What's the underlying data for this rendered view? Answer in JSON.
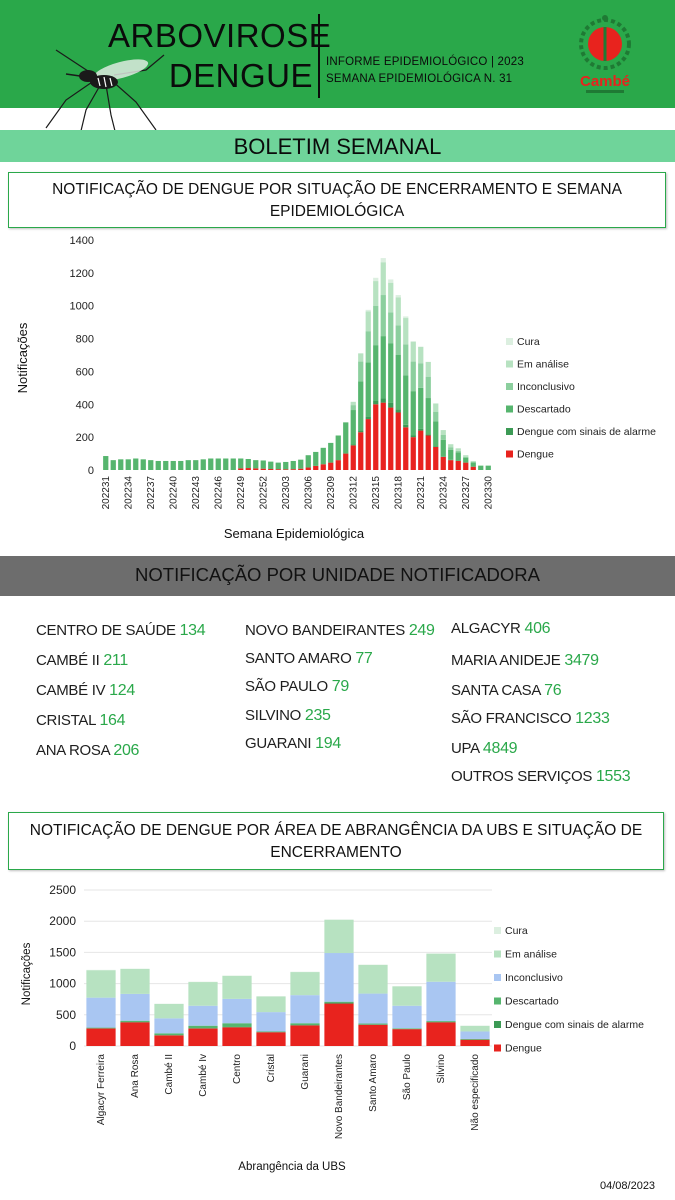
{
  "header": {
    "title_line1": "ARBOVIROSE",
    "title_line2": "DENGUE",
    "informe_line1": "INFORME EPIDEMIOLÓGICO | 2023",
    "informe_line2": "SEMANA EPIDEMIOLÓGICA   N. 31",
    "logo_text": "Cambé"
  },
  "banner": {
    "title": "BOLETIM SEMANAL"
  },
  "section1": {
    "title": "NOTIFICAÇÃO DE DENGUE POR SITUAÇÃO DE ENCERRAMENTO E SEMANA EPIDEMIOLÓGICA"
  },
  "section2": {
    "title": "NOTIFICAÇÃO POR UNIDADE NOTIFICADORA",
    "units": [
      {
        "name": "CENTRO  DE SAÚDE",
        "value": "134"
      },
      {
        "name": "CAMBÉ II",
        "value": "211"
      },
      {
        "name": "CAMBÉ IV",
        "value": "124"
      },
      {
        "name": "CRISTAL",
        "value": "164"
      },
      {
        "name": "ANA ROSA",
        "value": "206"
      },
      {
        "name": "NOVO BANDEIRANTES",
        "value": "249"
      },
      {
        "name": "SANTO AMARO",
        "value": "77"
      },
      {
        "name": "SÃO PAULO",
        "value": "79"
      },
      {
        "name": "SILVINO",
        "value": "235"
      },
      {
        "name": "GUARANI",
        "value": "194"
      },
      {
        "name": "ALGACYR",
        "value": "406"
      },
      {
        "name": "MARIA ANIDEJE",
        "value": "3479"
      },
      {
        "name": "SANTA CASA",
        "value": "76"
      },
      {
        "name": "SÃO FRANCISCO",
        "value": "1233"
      },
      {
        "name": "UPA",
        "value": "4849"
      },
      {
        "name": "OUTROS SERVIÇOS",
        "value": "1553"
      }
    ]
  },
  "section3": {
    "title": "NOTIFICAÇÃO DE DENGUE POR ÁREA DE ABRANGÊNCIA DA UBS E SITUAÇÃO DE ENCERRAMENTO"
  },
  "footer": {
    "date": "04/08/2023"
  },
  "colors": {
    "header_green": "#2aa84a",
    "banner_green": "#6fd49a",
    "dengue_red": "#e8231e",
    "unit_value_green": "#2aa84a"
  },
  "chart_data": [
    {
      "type": "bar",
      "stacked": true,
      "title": "",
      "xlabel": "Semana Epidemiológica",
      "ylabel": "Notificações",
      "ylim": [
        0,
        1400
      ],
      "yticks": [
        "0",
        "200",
        "400",
        "600",
        "800",
        "1000",
        "1200",
        "1400"
      ],
      "x_tick_labels": [
        "202231",
        "202234",
        "202237",
        "202240",
        "202243",
        "202246",
        "202249",
        "202252",
        "202303",
        "202306",
        "202309",
        "202312",
        "202315",
        "202318",
        "202321",
        "202324",
        "202327",
        "202330"
      ],
      "legend_position": "right",
      "legend_order": [
        "Cura",
        "Em análise",
        "Inconclusivo",
        "Descartado",
        "Dengue com sinais de alarme",
        "Dengue"
      ],
      "categories": [
        "202231",
        "202232",
        "202233",
        "202234",
        "202235",
        "202236",
        "202237",
        "202238",
        "202239",
        "202240",
        "202241",
        "202242",
        "202243",
        "202244",
        "202245",
        "202246",
        "202247",
        "202248",
        "202249",
        "202250",
        "202251",
        "202252",
        "202301",
        "202302",
        "202303",
        "202304",
        "202305",
        "202306",
        "202307",
        "202308",
        "202309",
        "202310",
        "202311",
        "202312",
        "202313",
        "202314",
        "202315",
        "202316",
        "202317",
        "202318",
        "202319",
        "202320",
        "202321",
        "202322",
        "202323",
        "202324",
        "202325",
        "202326",
        "202327",
        "202328",
        "202329",
        "202330"
      ],
      "series": [
        {
          "name": "Dengue",
          "color": "#e8231e",
          "values": [
            0,
            0,
            0,
            0,
            0,
            0,
            0,
            0,
            0,
            0,
            0,
            0,
            0,
            0,
            0,
            0,
            0,
            0,
            10,
            12,
            10,
            8,
            6,
            5,
            4,
            5,
            8,
            15,
            25,
            35,
            45,
            60,
            100,
            150,
            230,
            310,
            400,
            410,
            380,
            350,
            260,
            200,
            240,
            210,
            140,
            80,
            60,
            55,
            45,
            20,
            0,
            0
          ]
        },
        {
          "name": "Dengue com sinais de alarme",
          "color": "#3c9a55",
          "values": [
            0,
            0,
            0,
            0,
            0,
            0,
            0,
            0,
            0,
            0,
            0,
            0,
            0,
            0,
            0,
            0,
            0,
            0,
            0,
            0,
            0,
            0,
            0,
            0,
            0,
            0,
            0,
            0,
            0,
            0,
            0,
            0,
            0,
            5,
            10,
            15,
            20,
            25,
            30,
            20,
            15,
            10,
            10,
            8,
            5,
            3,
            2,
            2,
            0,
            0,
            0,
            0
          ]
        },
        {
          "name": "Descartado",
          "color": "#56b56e",
          "values": [
            85,
            60,
            65,
            65,
            70,
            65,
            60,
            55,
            55,
            55,
            55,
            60,
            60,
            65,
            70,
            70,
            70,
            70,
            60,
            55,
            50,
            50,
            45,
            40,
            45,
            50,
            55,
            75,
            85,
            100,
            120,
            150,
            190,
            210,
            300,
            330,
            340,
            380,
            360,
            330,
            300,
            270,
            250,
            220,
            150,
            100,
            60,
            50,
            30,
            25,
            25,
            25
          ]
        },
        {
          "name": "Inconclusivo",
          "color": "#8ccf9e",
          "values": [
            0,
            0,
            0,
            0,
            0,
            0,
            0,
            0,
            0,
            0,
            0,
            0,
            0,
            0,
            0,
            0,
            0,
            0,
            0,
            0,
            0,
            0,
            0,
            0,
            0,
            0,
            0,
            0,
            0,
            0,
            0,
            0,
            0,
            30,
            120,
            190,
            240,
            250,
            190,
            180,
            190,
            180,
            150,
            130,
            60,
            30,
            15,
            10,
            5,
            5,
            0,
            0
          ]
        },
        {
          "name": "Em análise",
          "color": "#b7e2c1",
          "values": [
            0,
            0,
            0,
            0,
            0,
            0,
            0,
            0,
            0,
            0,
            0,
            0,
            0,
            0,
            0,
            0,
            0,
            0,
            0,
            0,
            0,
            0,
            0,
            0,
            0,
            0,
            0,
            0,
            0,
            0,
            0,
            0,
            0,
            20,
            50,
            120,
            150,
            200,
            180,
            170,
            160,
            120,
            100,
            90,
            50,
            30,
            20,
            15,
            10,
            5,
            5,
            5
          ]
        },
        {
          "name": "Cura",
          "color": "#dcefe0",
          "values": [
            0,
            0,
            0,
            0,
            0,
            0,
            0,
            0,
            0,
            0,
            0,
            0,
            0,
            0,
            0,
            0,
            0,
            0,
            0,
            0,
            0,
            0,
            0,
            0,
            0,
            0,
            0,
            0,
            0,
            0,
            0,
            0,
            0,
            0,
            0,
            10,
            20,
            25,
            20,
            15,
            10,
            5,
            0,
            0,
            0,
            0,
            0,
            0,
            0,
            0,
            0,
            0
          ]
        }
      ]
    },
    {
      "type": "bar",
      "stacked": true,
      "title": "",
      "xlabel": "Abrangência da UBS",
      "ylabel": "Notificações",
      "ylim": [
        0,
        2500
      ],
      "yticks": [
        "0",
        "500",
        "1000",
        "1500",
        "2000",
        "2500"
      ],
      "legend_position": "right",
      "legend_order": [
        "Cura",
        "Em análise",
        "Inconclusivo",
        "Descartado",
        "Dengue com sinais de alarme",
        "Dengue"
      ],
      "categories": [
        "Algacyr Ferreira",
        "Ana Rosa",
        "Cambé II",
        "Cambé Iv",
        "Centro",
        "Cristal",
        "Guarani",
        "Novo Bandeirantes",
        "Santo Amaro",
        "São Paulo",
        "Silvino",
        "Não especificado"
      ],
      "series": [
        {
          "name": "Dengue",
          "color": "#e8231e",
          "values": [
            280,
            380,
            170,
            280,
            300,
            220,
            330,
            680,
            340,
            270,
            380,
            100
          ]
        },
        {
          "name": "Dengue com sinais de alarme",
          "color": "#3c9a55",
          "values": [
            5,
            5,
            3,
            5,
            5,
            3,
            5,
            20,
            10,
            5,
            10,
            3
          ]
        },
        {
          "name": "Descartado",
          "color": "#56b56e",
          "values": [
            10,
            20,
            30,
            40,
            60,
            10,
            30,
            10,
            10,
            10,
            10,
            10
          ]
        },
        {
          "name": "Inconclusivo",
          "color": "#a9c6f2",
          "values": [
            480,
            430,
            240,
            320,
            390,
            310,
            450,
            780,
            480,
            360,
            630,
            120
          ]
        },
        {
          "name": "Em análise",
          "color": "#b7e2c1",
          "values": [
            440,
            400,
            230,
            380,
            370,
            250,
            370,
            530,
            460,
            310,
            450,
            90
          ]
        },
        {
          "name": "Cura",
          "color": "#dcefe0",
          "values": [
            5,
            5,
            5,
            5,
            5,
            5,
            5,
            10,
            5,
            5,
            5,
            5
          ]
        }
      ]
    }
  ]
}
